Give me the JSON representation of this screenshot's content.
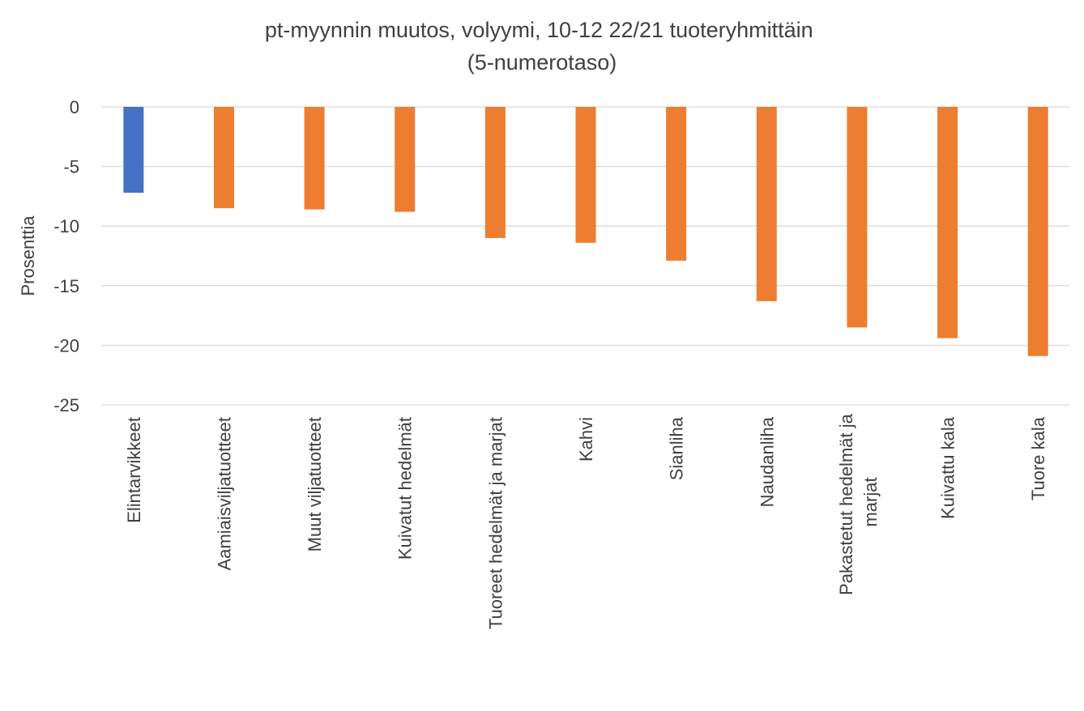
{
  "chart_data": {
    "type": "bar",
    "title": "pt-myynnin muutos, volyymi, 10-12 22/21 tuoteryhmittäin (5-numerotaso)",
    "y_label": "Prosenttia",
    "categories": [
      "Elintarvikkeet",
      "Aamiaisviljatuotteet",
      "Muut viljatuotteet",
      "Kuivatut hedelmät",
      "Tuoreet hedelmät ja marjat",
      "Kahvi",
      "Sianliha",
      "Naudanliha",
      "Pakastetut hedelmät ja marjat",
      "Kuivattu kala",
      "Tuore kala"
    ],
    "values": [
      -7.2,
      -8.5,
      -8.6,
      -8.8,
      -11.0,
      -11.4,
      -12.9,
      -16.3,
      -18.5,
      -19.4,
      -20.9
    ],
    "colors": [
      "#4472c4",
      "#ed7d31",
      "#ed7d31",
      "#ed7d31",
      "#ed7d31",
      "#ed7d31",
      "#ed7d31",
      "#ed7d31",
      "#ed7d31",
      "#ed7d31",
      "#ed7d31"
    ],
    "ylim": [
      -25,
      0
    ],
    "yticks": [
      0,
      -5,
      -10,
      -15,
      -20,
      -25
    ],
    "grid": true
  }
}
